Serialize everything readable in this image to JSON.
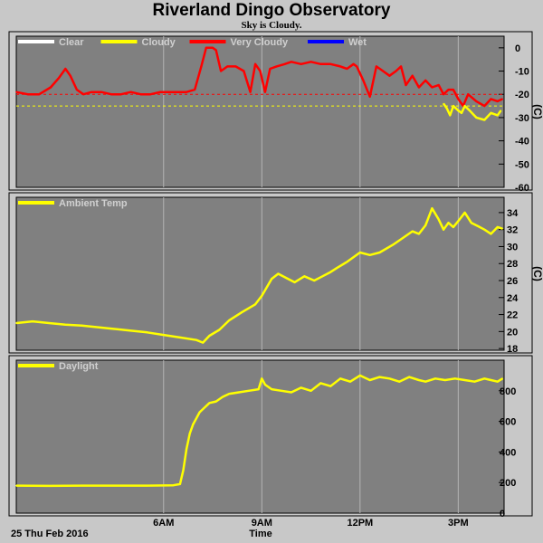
{
  "title": "Riverland Dingo Observatory",
  "subtitle": "Sky is Cloudy.",
  "footer": {
    "date": "25 Thu Feb 2016",
    "xlabel": "Time",
    "xticks": [
      "6AM",
      "9AM",
      "12PM",
      "3PM"
    ]
  },
  "colors": {
    "clear": "#ffffff",
    "cloudy": "#ffff00",
    "very_cloudy": "#ff0000",
    "wet": "#0000ff",
    "plot_bg": "#808080",
    "grid": "#b4b4b4",
    "frame_bg": "#c8c8c8"
  },
  "chart_data": [
    {
      "type": "line",
      "name": "sky",
      "ylabel": "(C)",
      "ylim": [
        -60,
        5
      ],
      "yticks": [
        0,
        -10,
        -20,
        -30,
        -40,
        -50,
        -60
      ],
      "xlim": [
        1.5,
        16.4
      ],
      "xticks": [
        6,
        9,
        12,
        15
      ],
      "thresholds": [
        {
          "value": -20,
          "color": "#ff0000"
        },
        {
          "value": -25,
          "color": "#ffff00"
        }
      ],
      "legend": [
        {
          "label": "Clear",
          "color": "#ffffff"
        },
        {
          "label": "Cloudy",
          "color": "#ffff00"
        },
        {
          "label": "Very Cloudy",
          "color": "#ff0000"
        },
        {
          "label": "Wet",
          "color": "#0000ff"
        }
      ],
      "series": [
        {
          "name": "Very Cloudy",
          "color": "#ff0000",
          "x": [
            1.5,
            1.85,
            2.2,
            2.55,
            2.8,
            3.0,
            3.15,
            3.35,
            3.55,
            3.8,
            4.1,
            4.4,
            4.7,
            5.0,
            5.3,
            5.6,
            5.9,
            6.2,
            6.45,
            6.7,
            6.95,
            7.15,
            7.3,
            7.5,
            7.6,
            7.75,
            7.95,
            8.2,
            8.45,
            8.65,
            8.8,
            8.95,
            9.1,
            9.25,
            9.45,
            9.7,
            9.9,
            10.2,
            10.5,
            10.8,
            11.1,
            11.4,
            11.6,
            11.8,
            11.9,
            12.1,
            12.3,
            12.5,
            12.7,
            12.9,
            13.1,
            13.25,
            13.4,
            13.6,
            13.8,
            14.0,
            14.2,
            14.4,
            14.55,
            14.7,
            14.85,
            15.0,
            15.15,
            15.3,
            15.55,
            15.8,
            16.0,
            16.2,
            16.35
          ],
          "y": [
            -19,
            -20,
            -20,
            -17,
            -13,
            -9,
            -12,
            -18,
            -20,
            -19,
            -19,
            -20,
            -20,
            -19,
            -20,
            -20,
            -19,
            -19,
            -19,
            -19,
            -18,
            -8,
            0,
            0,
            -1,
            -10,
            -8,
            -8,
            -10,
            -19,
            -7,
            -10,
            -19,
            -9,
            -8,
            -7,
            -6,
            -7,
            -6,
            -7,
            -7,
            -8,
            -9,
            -7,
            -8,
            -14,
            -21,
            -8,
            -10,
            -12,
            -10,
            -8,
            -16,
            -12,
            -17,
            -14,
            -17,
            -16,
            -20,
            -18,
            -18,
            -22,
            -25,
            -20,
            -23,
            -25,
            -22,
            -23,
            -22
          ]
        },
        {
          "name": "Cloudy",
          "color": "#ffff00",
          "x": [
            14.55,
            14.65,
            14.75,
            14.85,
            15.0,
            15.1,
            15.2,
            15.35,
            15.55,
            15.8,
            16.0,
            16.2,
            16.3
          ],
          "y": [
            -24,
            -26,
            -29,
            -25,
            -27,
            -28,
            -25,
            -27,
            -30,
            -31,
            -28,
            -29,
            -27
          ]
        }
      ]
    },
    {
      "type": "line",
      "name": "ambient",
      "ylabel": "(C)",
      "ylim": [
        17.8,
        35.8
      ],
      "yticks": [
        18,
        20,
        22,
        24,
        26,
        28,
        30,
        32,
        34
      ],
      "xlim": [
        1.5,
        16.4
      ],
      "xticks": [
        6,
        9,
        12,
        15
      ],
      "legend": [
        {
          "label": "Ambient Temp",
          "color": "#ffff00"
        }
      ],
      "series": [
        {
          "name": "Ambient Temp",
          "color": "#ffff00",
          "x": [
            1.5,
            2.0,
            2.5,
            3.0,
            3.5,
            4.0,
            4.5,
            5.0,
            5.5,
            6.0,
            6.5,
            7.0,
            7.2,
            7.4,
            7.7,
            8.0,
            8.4,
            8.8,
            9.0,
            9.3,
            9.5,
            9.8,
            10.0,
            10.3,
            10.6,
            10.8,
            11.1,
            11.3,
            11.6,
            12.0,
            12.3,
            12.6,
            13.0,
            13.3,
            13.6,
            13.8,
            14.0,
            14.2,
            14.4,
            14.55,
            14.7,
            14.85,
            15.0,
            15.2,
            15.4,
            15.6,
            15.8,
            16.0,
            16.2,
            16.35
          ],
          "y": [
            21.0,
            21.2,
            21.0,
            20.8,
            20.7,
            20.5,
            20.3,
            20.1,
            19.9,
            19.6,
            19.3,
            19.0,
            18.7,
            19.5,
            20.2,
            21.3,
            22.3,
            23.2,
            24.2,
            26.2,
            26.8,
            26.2,
            25.8,
            26.5,
            26.0,
            26.4,
            27.0,
            27.5,
            28.2,
            29.3,
            29.0,
            29.3,
            30.2,
            31.0,
            31.8,
            31.5,
            32.5,
            34.5,
            33.2,
            32.0,
            32.8,
            32.3,
            33.0,
            34.0,
            32.8,
            32.4,
            32.0,
            31.5,
            32.3,
            32.1
          ]
        }
      ]
    },
    {
      "type": "line",
      "name": "daylight",
      "ylabel": "",
      "ylim": [
        0,
        1000
      ],
      "yticks": [
        0,
        200,
        400,
        600,
        800
      ],
      "xlim": [
        1.5,
        16.4
      ],
      "xticks": [
        6,
        9,
        12,
        15
      ],
      "legend": [
        {
          "label": "Daylight",
          "color": "#ffff00"
        }
      ],
      "series": [
        {
          "name": "Daylight",
          "color": "#ffff00",
          "x": [
            1.5,
            2.5,
            3.5,
            4.5,
            5.5,
            6.3,
            6.5,
            6.6,
            6.7,
            6.8,
            6.9,
            7.0,
            7.1,
            7.25,
            7.4,
            7.6,
            7.8,
            8.0,
            8.3,
            8.6,
            8.9,
            9.0,
            9.1,
            9.3,
            9.6,
            9.9,
            10.2,
            10.5,
            10.8,
            11.1,
            11.4,
            11.7,
            12.0,
            12.3,
            12.6,
            12.9,
            13.2,
            13.5,
            13.8,
            14.0,
            14.3,
            14.6,
            14.9,
            15.2,
            15.5,
            15.8,
            16.0,
            16.2,
            16.35
          ],
          "y": [
            180,
            178,
            180,
            180,
            180,
            182,
            190,
            280,
            420,
            520,
            580,
            620,
            660,
            690,
            720,
            730,
            760,
            780,
            790,
            800,
            810,
            880,
            840,
            810,
            800,
            790,
            820,
            800,
            850,
            830,
            880,
            860,
            900,
            870,
            890,
            880,
            860,
            890,
            870,
            860,
            880,
            870,
            880,
            870,
            860,
            880,
            870,
            860,
            880
          ]
        }
      ]
    }
  ]
}
